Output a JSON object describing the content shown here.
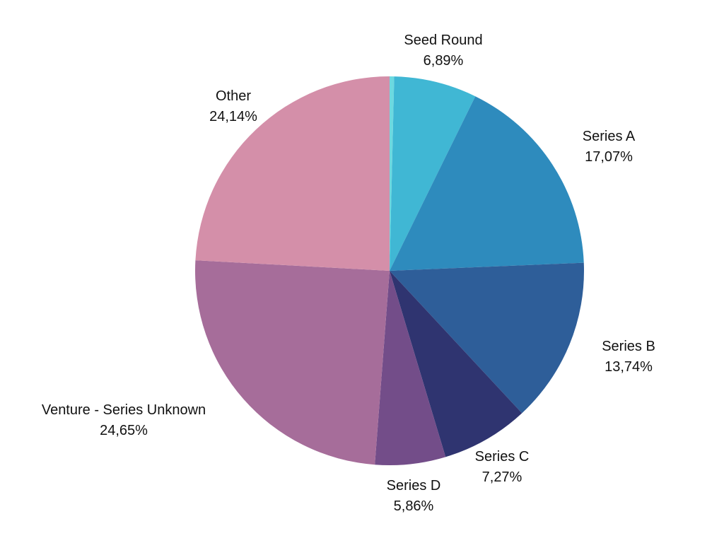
{
  "chart_data": {
    "type": "pie",
    "title": "",
    "start": "top",
    "direction": "clockwise",
    "slices": [
      {
        "name": "",
        "value": 0.38,
        "label": "",
        "color": "#6cd9e0"
      },
      {
        "name": "Seed Round",
        "value": 6.89,
        "label": "6,89%",
        "color": "#40b7d4"
      },
      {
        "name": "Series A",
        "value": 17.07,
        "label": "17,07%",
        "color": "#2e8bbd"
      },
      {
        "name": "Series B",
        "value": 13.74,
        "label": "13,74%",
        "color": "#2e5e99"
      },
      {
        "name": "Series C",
        "value": 7.27,
        "label": "7,27%",
        "color": "#2f3470"
      },
      {
        "name": "Series D",
        "value": 5.86,
        "label": "5,86%",
        "color": "#734d89"
      },
      {
        "name": "Venture - Series Unknown",
        "value": 24.65,
        "label": "24,65%",
        "color": "#a66d9a"
      },
      {
        "name": "Other",
        "value": 24.14,
        "label": "24,14%",
        "color": "#d48fa9"
      }
    ]
  }
}
